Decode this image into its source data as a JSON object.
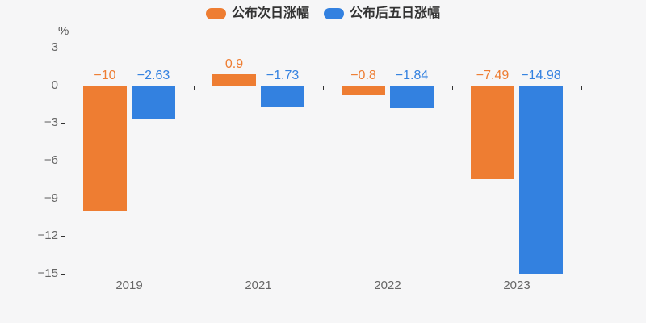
{
  "chart_data": {
    "type": "bar",
    "title": "",
    "categories": [
      "2019",
      "2021",
      "2022",
      "2023"
    ],
    "series": [
      {
        "name": "公布次日涨幅",
        "color": "#ee7d32",
        "values": [
          -10,
          0.9,
          -0.8,
          -7.49
        ],
        "labels": [
          "−10",
          "0.9",
          "−0.8",
          "−7.49"
        ]
      },
      {
        "name": "公布后五日涨幅",
        "color": "#3381e0",
        "values": [
          -2.63,
          -1.73,
          -1.84,
          -14.98
        ],
        "labels": [
          "−2.63",
          "−1.73",
          "−1.84",
          "−14.98"
        ]
      }
    ],
    "xlabel": "",
    "ylabel": "%",
    "ylim": [
      -15,
      3
    ],
    "yticks": [
      3,
      0,
      -3,
      -6,
      -9,
      -12,
      -15
    ],
    "ytick_labels": [
      "3",
      "0",
      "−3",
      "−6",
      "−9",
      "−12",
      "−15"
    ],
    "legend_position": "top",
    "grid": false,
    "background": "#f6f6f7",
    "axis_color": "#333333",
    "tick_text_color": "#666666"
  }
}
